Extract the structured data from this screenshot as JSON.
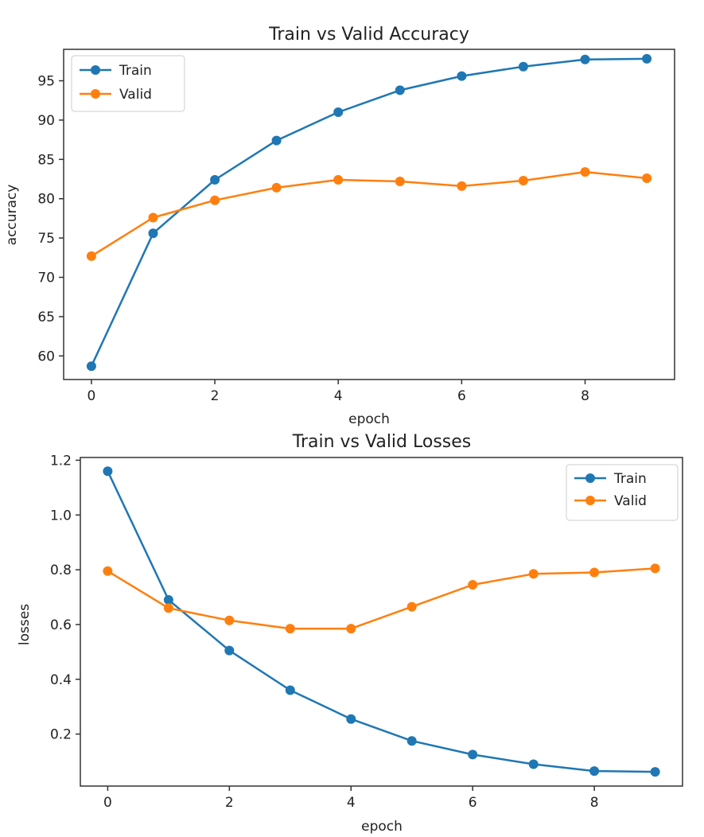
{
  "colors": {
    "train": "#1f77b4",
    "valid": "#ff7f0e",
    "axes": "#333333",
    "background": "#ffffff"
  },
  "chart_data": [
    {
      "type": "line",
      "title": "Train vs Valid Accuracy",
      "xlabel": "epoch",
      "ylabel": "accuracy",
      "x": [
        0,
        1,
        2,
        3,
        4,
        5,
        6,
        7,
        8,
        9
      ],
      "xlim": [
        -0.45,
        9.45
      ],
      "ylim": [
        57,
        99
      ],
      "xticks": [
        0,
        2,
        4,
        6,
        8
      ],
      "yticks": [
        60,
        65,
        70,
        75,
        80,
        85,
        90,
        95
      ],
      "legend_position": "upper-left",
      "grid": false,
      "series": [
        {
          "name": "Train",
          "color": "#1f77b4",
          "values": [
            58.7,
            75.6,
            82.4,
            87.4,
            91.0,
            93.8,
            95.6,
            96.8,
            97.7,
            97.8
          ]
        },
        {
          "name": "Valid",
          "color": "#ff7f0e",
          "values": [
            72.7,
            77.6,
            79.8,
            81.4,
            82.4,
            82.2,
            81.6,
            82.3,
            83.4,
            82.6
          ]
        }
      ]
    },
    {
      "type": "line",
      "title": "Train vs Valid Losses",
      "xlabel": "epoch",
      "ylabel": "losses",
      "x": [
        0,
        1,
        2,
        3,
        4,
        5,
        6,
        7,
        8,
        9
      ],
      "xlim": [
        -0.45,
        9.45
      ],
      "ylim": [
        0.01,
        1.21
      ],
      "xticks": [
        0,
        2,
        4,
        6,
        8
      ],
      "yticks": [
        0.2,
        0.4,
        0.6,
        0.8,
        1.0,
        1.2
      ],
      "ytick_labels": [
        "0.2",
        "0.4",
        "0.6",
        "0.8",
        "1.0",
        "1.2"
      ],
      "legend_position": "upper-right",
      "grid": false,
      "series": [
        {
          "name": "Train",
          "color": "#1f77b4",
          "values": [
            1.16,
            0.69,
            0.505,
            0.36,
            0.255,
            0.175,
            0.125,
            0.09,
            0.065,
            0.062
          ]
        },
        {
          "name": "Valid",
          "color": "#ff7f0e",
          "values": [
            0.795,
            0.66,
            0.615,
            0.585,
            0.585,
            0.665,
            0.745,
            0.785,
            0.79,
            0.805
          ]
        }
      ]
    }
  ]
}
